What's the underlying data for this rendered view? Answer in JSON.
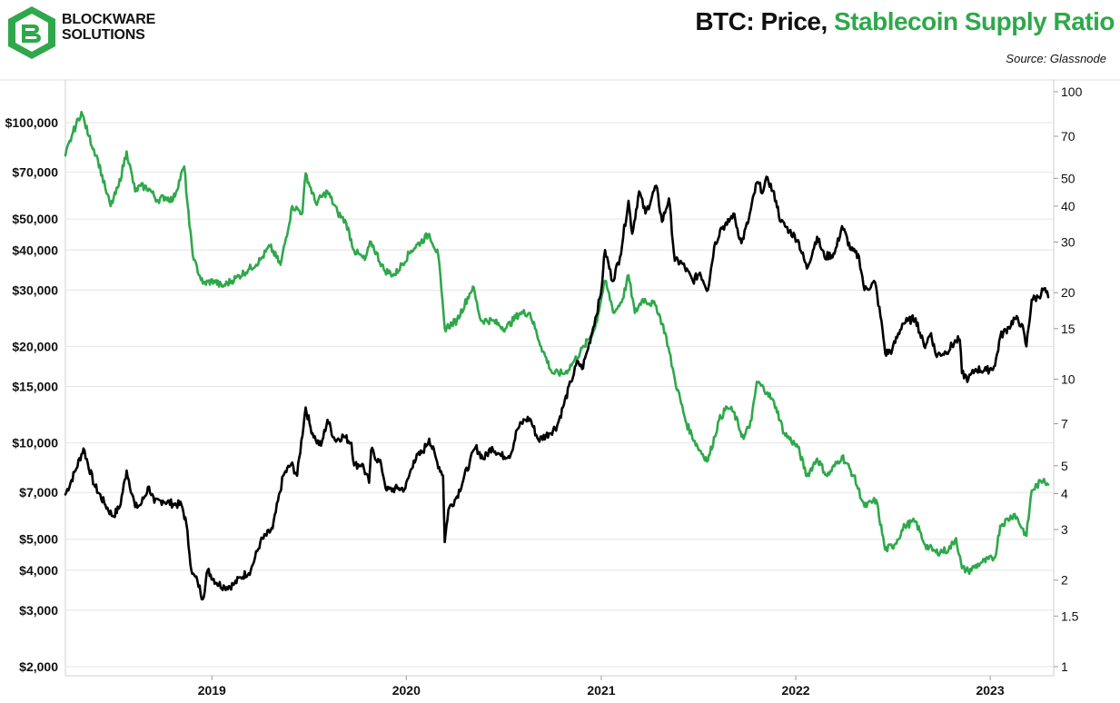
{
  "header": {
    "brand_line1": "BLOCKWARE",
    "brand_line2": "SOLUTIONS",
    "title_part1": "BTC: Price, ",
    "title_part2": "Stablecoin Supply Ratio",
    "source": "Source: Glassnode"
  },
  "colors": {
    "price": "#000000",
    "ssr": "#2ea84a",
    "grid": "#e4e4e4",
    "logo": "#2ea84a"
  },
  "chart_data": {
    "type": "line",
    "title": "BTC: Price, Stablecoin Supply Ratio",
    "x_ticks": [
      "2019",
      "2020",
      "2021",
      "2022",
      "2023"
    ],
    "x_range": [
      "2018-04-01",
      "2023-04-20"
    ],
    "left_axis": {
      "scale": "log",
      "range": [
        2000,
        130000
      ],
      "ticks": [
        {
          "value": 100000,
          "label": "$100,000"
        },
        {
          "value": 70000,
          "label": "$70,000"
        },
        {
          "value": 50000,
          "label": "$50,000"
        },
        {
          "value": 40000,
          "label": "$40,000"
        },
        {
          "value": 30000,
          "label": "$30,000"
        },
        {
          "value": 20000,
          "label": "$20,000"
        },
        {
          "value": 15000,
          "label": "$15,000"
        },
        {
          "value": 10000,
          "label": "$10,000"
        },
        {
          "value": 7000,
          "label": "$7,000"
        },
        {
          "value": 5000,
          "label": "$5,000"
        },
        {
          "value": 4000,
          "label": "$4,000"
        },
        {
          "value": 3000,
          "label": "$3,000"
        },
        {
          "value": 2000,
          "label": "$2,000"
        }
      ]
    },
    "right_axis": {
      "scale": "log",
      "range": [
        1,
        100
      ],
      "ticks": [
        {
          "value": 100,
          "label": "100"
        },
        {
          "value": 70,
          "label": "70"
        },
        {
          "value": 50,
          "label": "50"
        },
        {
          "value": 40,
          "label": "40"
        },
        {
          "value": 30,
          "label": "30"
        },
        {
          "value": 20,
          "label": "20"
        },
        {
          "value": 15,
          "label": "15"
        },
        {
          "value": 10,
          "label": "10"
        },
        {
          "value": 7,
          "label": "7"
        },
        {
          "value": 5,
          "label": "5"
        },
        {
          "value": 4,
          "label": "4"
        },
        {
          "value": 3,
          "label": "3"
        },
        {
          "value": 2,
          "label": "2"
        },
        {
          "value": 1.5,
          "label": "1.5"
        },
        {
          "value": 1,
          "label": "1"
        }
      ]
    },
    "series": [
      {
        "axis": "left",
        "color": "#000000",
        "points": [
          [
            "2018-04-01",
            6900
          ],
          [
            "2018-04-20",
            8200
          ],
          [
            "2018-05-05",
            9600
          ],
          [
            "2018-05-25",
            7400
          ],
          [
            "2018-06-15",
            6400
          ],
          [
            "2018-06-29",
            5900
          ],
          [
            "2018-07-12",
            6300
          ],
          [
            "2018-07-25",
            8200
          ],
          [
            "2018-08-10",
            6300
          ],
          [
            "2018-08-20",
            6400
          ],
          [
            "2018-09-05",
            7300
          ],
          [
            "2018-09-15",
            6500
          ],
          [
            "2018-10-01",
            6600
          ],
          [
            "2018-10-20",
            6450
          ],
          [
            "2018-11-05",
            6400
          ],
          [
            "2018-11-14",
            5600
          ],
          [
            "2018-11-20",
            4500
          ],
          [
            "2018-11-25",
            3900
          ],
          [
            "2018-12-05",
            3700
          ],
          [
            "2018-12-15",
            3250
          ],
          [
            "2018-12-24",
            4000
          ],
          [
            "2019-01-10",
            3650
          ],
          [
            "2019-01-25",
            3550
          ],
          [
            "2019-02-10",
            3600
          ],
          [
            "2019-02-24",
            3800
          ],
          [
            "2019-03-15",
            4000
          ],
          [
            "2019-04-02",
            4900
          ],
          [
            "2019-04-25",
            5400
          ],
          [
            "2019-05-15",
            7900
          ],
          [
            "2019-05-30",
            8600
          ],
          [
            "2019-06-10",
            7900
          ],
          [
            "2019-06-26",
            12900
          ],
          [
            "2019-07-05",
            11200
          ],
          [
            "2019-07-15",
            10200
          ],
          [
            "2019-07-25",
            9800
          ],
          [
            "2019-08-06",
            11800
          ],
          [
            "2019-08-20",
            10200
          ],
          [
            "2019-09-05",
            10500
          ],
          [
            "2019-09-20",
            10000
          ],
          [
            "2019-09-25",
            8500
          ],
          [
            "2019-10-10",
            8600
          ],
          [
            "2019-10-23",
            7500
          ],
          [
            "2019-10-27",
            9500
          ],
          [
            "2019-11-15",
            8500
          ],
          [
            "2019-11-25",
            7100
          ],
          [
            "2019-12-15",
            7200
          ],
          [
            "2019-12-30",
            7200
          ],
          [
            "2020-01-15",
            8800
          ],
          [
            "2020-02-01",
            9400
          ],
          [
            "2020-02-13",
            10300
          ],
          [
            "2020-02-28",
            8700
          ],
          [
            "2020-03-10",
            7900
          ],
          [
            "2020-03-13",
            4900
          ],
          [
            "2020-03-20",
            6200
          ],
          [
            "2020-04-05",
            6800
          ],
          [
            "2020-04-29",
            8700
          ],
          [
            "2020-05-10",
            9700
          ],
          [
            "2020-05-25",
            8900
          ],
          [
            "2020-06-10",
            9700
          ],
          [
            "2020-06-27",
            9100
          ],
          [
            "2020-07-15",
            9200
          ],
          [
            "2020-07-27",
            11000
          ],
          [
            "2020-08-10",
            11800
          ],
          [
            "2020-08-20",
            11900
          ],
          [
            "2020-09-05",
            10200
          ],
          [
            "2020-09-25",
            10700
          ],
          [
            "2020-10-10",
            11300
          ],
          [
            "2020-10-21",
            12900
          ],
          [
            "2020-11-05",
            15500
          ],
          [
            "2020-11-18",
            18000
          ],
          [
            "2020-11-26",
            17000
          ],
          [
            "2020-12-05",
            19200
          ],
          [
            "2020-12-17",
            23000
          ],
          [
            "2020-12-31",
            29000
          ],
          [
            "2021-01-08",
            40000
          ],
          [
            "2021-01-22",
            32000
          ],
          [
            "2021-02-05",
            38000
          ],
          [
            "2021-02-21",
            57000
          ],
          [
            "2021-02-28",
            45000
          ],
          [
            "2021-03-13",
            61000
          ],
          [
            "2021-03-25",
            52000
          ],
          [
            "2021-04-14",
            63500
          ],
          [
            "2021-04-25",
            49000
          ],
          [
            "2021-05-08",
            58000
          ],
          [
            "2021-05-19",
            37000
          ],
          [
            "2021-06-01",
            36500
          ],
          [
            "2021-06-22",
            32000
          ],
          [
            "2021-07-05",
            34000
          ],
          [
            "2021-07-20",
            30000
          ],
          [
            "2021-08-01",
            41000
          ],
          [
            "2021-08-14",
            47000
          ],
          [
            "2021-08-25",
            48000
          ],
          [
            "2021-09-06",
            52000
          ],
          [
            "2021-09-21",
            42000
          ],
          [
            "2021-10-05",
            50000
          ],
          [
            "2021-10-20",
            65000
          ],
          [
            "2021-11-01",
            61000
          ],
          [
            "2021-11-09",
            67500
          ],
          [
            "2021-11-25",
            57000
          ],
          [
            "2021-12-04",
            49000
          ],
          [
            "2021-12-20",
            46000
          ],
          [
            "2022-01-05",
            43000
          ],
          [
            "2022-01-22",
            35000
          ],
          [
            "2022-02-10",
            44000
          ],
          [
            "2022-02-24",
            38000
          ],
          [
            "2022-03-15",
            39000
          ],
          [
            "2022-03-29",
            47500
          ],
          [
            "2022-04-15",
            40000
          ],
          [
            "2022-04-30",
            38000
          ],
          [
            "2022-05-10",
            30000
          ],
          [
            "2022-05-30",
            31700
          ],
          [
            "2022-06-13",
            22500
          ],
          [
            "2022-06-18",
            19000
          ],
          [
            "2022-07-01",
            19500
          ],
          [
            "2022-07-20",
            23500
          ],
          [
            "2022-07-30",
            24000
          ],
          [
            "2022-08-14",
            24500
          ],
          [
            "2022-08-30",
            20000
          ],
          [
            "2022-09-12",
            22000
          ],
          [
            "2022-09-21",
            18800
          ],
          [
            "2022-10-10",
            19200
          ],
          [
            "2022-10-29",
            20800
          ],
          [
            "2022-11-05",
            21000
          ],
          [
            "2022-11-09",
            16500
          ],
          [
            "2022-11-21",
            15800
          ],
          [
            "2022-12-05",
            17000
          ],
          [
            "2022-12-25",
            16800
          ],
          [
            "2023-01-10",
            17400
          ],
          [
            "2023-01-20",
            21500
          ],
          [
            "2023-02-05",
            23000
          ],
          [
            "2023-02-16",
            24500
          ],
          [
            "2023-03-01",
            23500
          ],
          [
            "2023-03-10",
            20000
          ],
          [
            "2023-03-20",
            28000
          ],
          [
            "2023-04-01",
            28500
          ],
          [
            "2023-04-12",
            30300
          ],
          [
            "2023-04-20",
            28500
          ]
        ]
      },
      {
        "axis": "right",
        "color": "#2ea84a",
        "points": [
          [
            "2018-04-01",
            60
          ],
          [
            "2018-04-15",
            72
          ],
          [
            "2018-05-01",
            85
          ],
          [
            "2018-05-15",
            70
          ],
          [
            "2018-06-01",
            58
          ],
          [
            "2018-06-15",
            46
          ],
          [
            "2018-06-25",
            40
          ],
          [
            "2018-07-10",
            47
          ],
          [
            "2018-07-25",
            62
          ],
          [
            "2018-08-10",
            45
          ],
          [
            "2018-08-20",
            47
          ],
          [
            "2018-09-05",
            46
          ],
          [
            "2018-09-20",
            42
          ],
          [
            "2018-10-05",
            43
          ],
          [
            "2018-10-20",
            42
          ],
          [
            "2018-11-10",
            55
          ],
          [
            "2018-11-20",
            34
          ],
          [
            "2018-11-28",
            26
          ],
          [
            "2018-12-15",
            21.5
          ],
          [
            "2019-01-05",
            22
          ],
          [
            "2019-01-20",
            21
          ],
          [
            "2019-02-15",
            22.5
          ],
          [
            "2019-03-10",
            24
          ],
          [
            "2019-04-02",
            26
          ],
          [
            "2019-04-20",
            29
          ],
          [
            "2019-05-10",
            25
          ],
          [
            "2019-06-01",
            40
          ],
          [
            "2019-06-20",
            38
          ],
          [
            "2019-06-26",
            52
          ],
          [
            "2019-07-15",
            41
          ],
          [
            "2019-08-06",
            45
          ],
          [
            "2019-08-25",
            38
          ],
          [
            "2019-09-10",
            35
          ],
          [
            "2019-09-25",
            28
          ],
          [
            "2019-10-15",
            26
          ],
          [
            "2019-10-27",
            30
          ],
          [
            "2019-11-20",
            24
          ],
          [
            "2019-12-10",
            23
          ],
          [
            "2020-01-10",
            28
          ],
          [
            "2020-02-13",
            32
          ],
          [
            "2020-03-01",
            27
          ],
          [
            "2020-03-13",
            15
          ],
          [
            "2020-04-05",
            16
          ],
          [
            "2020-05-05",
            21
          ],
          [
            "2020-05-20",
            16
          ],
          [
            "2020-06-10",
            16
          ],
          [
            "2020-07-05",
            15
          ],
          [
            "2020-08-01",
            17
          ],
          [
            "2020-08-20",
            17
          ],
          [
            "2020-09-10",
            13
          ],
          [
            "2020-10-01",
            10.5
          ],
          [
            "2020-10-25",
            10.5
          ],
          [
            "2020-11-10",
            11.5
          ],
          [
            "2020-11-30",
            13
          ],
          [
            "2020-12-20",
            15
          ],
          [
            "2021-01-08",
            22
          ],
          [
            "2021-01-25",
            17
          ],
          [
            "2021-02-10",
            19
          ],
          [
            "2021-02-21",
            23
          ],
          [
            "2021-03-05",
            17
          ],
          [
            "2021-03-20",
            19
          ],
          [
            "2021-04-14",
            18
          ],
          [
            "2021-05-01",
            14.5
          ],
          [
            "2021-05-19",
            10
          ],
          [
            "2021-06-10",
            7
          ],
          [
            "2021-07-01",
            5.8
          ],
          [
            "2021-07-20",
            5.2
          ],
          [
            "2021-08-10",
            7.2
          ],
          [
            "2021-08-25",
            8
          ],
          [
            "2021-09-06",
            7.7
          ],
          [
            "2021-09-25",
            6.2
          ],
          [
            "2021-10-10",
            7.2
          ],
          [
            "2021-10-20",
            9.8
          ],
          [
            "2021-11-09",
            9
          ],
          [
            "2021-11-25",
            8
          ],
          [
            "2021-12-10",
            6.5
          ],
          [
            "2022-01-05",
            5.8
          ],
          [
            "2022-01-22",
            4.6
          ],
          [
            "2022-02-10",
            5.3
          ],
          [
            "2022-03-01",
            4.6
          ],
          [
            "2022-03-29",
            5.4
          ],
          [
            "2022-04-20",
            4.6
          ],
          [
            "2022-05-10",
            3.6
          ],
          [
            "2022-06-01",
            3.8
          ],
          [
            "2022-06-18",
            2.55
          ],
          [
            "2022-07-05",
            2.65
          ],
          [
            "2022-07-25",
            3.1
          ],
          [
            "2022-08-14",
            3.2
          ],
          [
            "2022-09-01",
            2.65
          ],
          [
            "2022-09-21",
            2.5
          ],
          [
            "2022-10-15",
            2.55
          ],
          [
            "2022-10-29",
            2.8
          ],
          [
            "2022-11-09",
            2.2
          ],
          [
            "2022-11-21",
            2.15
          ],
          [
            "2022-12-15",
            2.3
          ],
          [
            "2023-01-10",
            2.4
          ],
          [
            "2023-01-20",
            3.1
          ],
          [
            "2023-02-16",
            3.4
          ],
          [
            "2023-03-10",
            2.85
          ],
          [
            "2023-03-20",
            4.1
          ],
          [
            "2023-04-12",
            4.5
          ],
          [
            "2023-04-20",
            4.3
          ]
        ]
      }
    ]
  }
}
